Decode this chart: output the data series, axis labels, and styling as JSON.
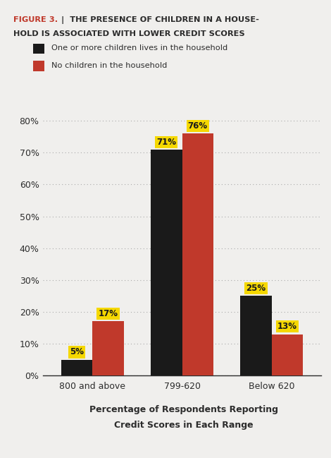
{
  "title_figure": "FIGURE 3.",
  "title_separator": "|",
  "title_line1": "THE PRESENCE OF CHILDREN IN A HOUSE-",
  "title_line2": "HOLD IS ASSOCIATED WITH LOWER CREDIT SCORES",
  "title_figure_color": "#c0392b",
  "title_main_color": "#2c2c2c",
  "background_color": "#f0efed",
  "categories": [
    "800 and above",
    "799-620",
    "Below 620"
  ],
  "series": [
    {
      "label": "One or more children lives in the household",
      "color": "#1a1a1a",
      "values": [
        5,
        71,
        25
      ]
    },
    {
      "label": "No children in the household",
      "color": "#c0392b",
      "values": [
        17,
        76,
        13
      ]
    }
  ],
  "label_bg_color": "#f5d800",
  "label_text_color": "#1a1a1a",
  "xlabel_line1": "Percentage of Respondents Reporting",
  "xlabel_line2": "Credit Scores in Each Range",
  "ylim": [
    0,
    82
  ],
  "yticks": [
    0,
    10,
    20,
    30,
    40,
    50,
    60,
    70,
    80
  ],
  "grid_color": "#aaaaaa",
  "bar_width": 0.35,
  "figsize": [
    4.7,
    6.49
  ],
  "dpi": 100
}
